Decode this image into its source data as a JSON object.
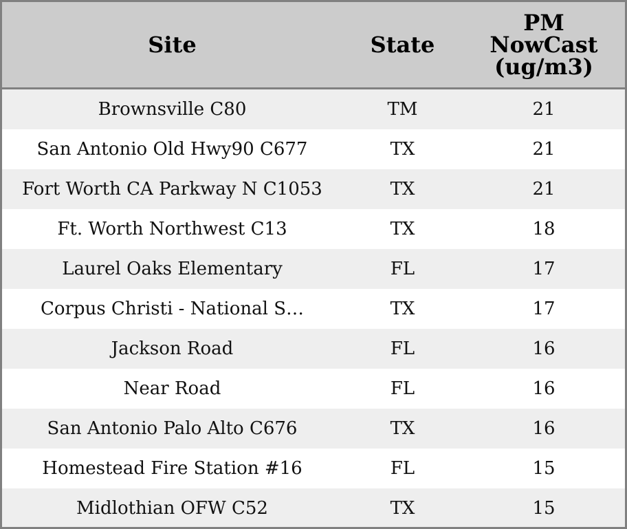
{
  "chart_data": {
    "type": "table",
    "columns": [
      "Site",
      "State",
      "PM NowCast (ug/m3)"
    ],
    "header_lines": {
      "pm": [
        "PM",
        "NowCast",
        "(ug/m3)"
      ]
    },
    "rows": [
      {
        "site": "Brownsville C80",
        "state": "TM",
        "pm": 21
      },
      {
        "site": "San Antonio Old Hwy90 C677",
        "state": "TX",
        "pm": 21
      },
      {
        "site": "Fort Worth CA Parkway N C1053",
        "state": "TX",
        "pm": 21
      },
      {
        "site": "Ft. Worth Northwest C13",
        "state": "TX",
        "pm": 18
      },
      {
        "site": "Laurel Oaks Elementary",
        "state": "FL",
        "pm": 17
      },
      {
        "site": "Corpus Christi - National S…",
        "state": "TX",
        "pm": 17
      },
      {
        "site": "Jackson Road",
        "state": "FL",
        "pm": 16
      },
      {
        "site": "Near Road",
        "state": "FL",
        "pm": 16
      },
      {
        "site": "San Antonio Palo Alto C676",
        "state": "TX",
        "pm": 16
      },
      {
        "site": "Homestead Fire Station #16",
        "state": "FL",
        "pm": 15
      },
      {
        "site": "Midlothian OFW C52",
        "state": "TX",
        "pm": 15
      }
    ]
  },
  "colors": {
    "header_bg": "#cccccc",
    "stripe_bg": "#eeeeee",
    "row_bg": "#ffffff",
    "border": "#808080"
  }
}
